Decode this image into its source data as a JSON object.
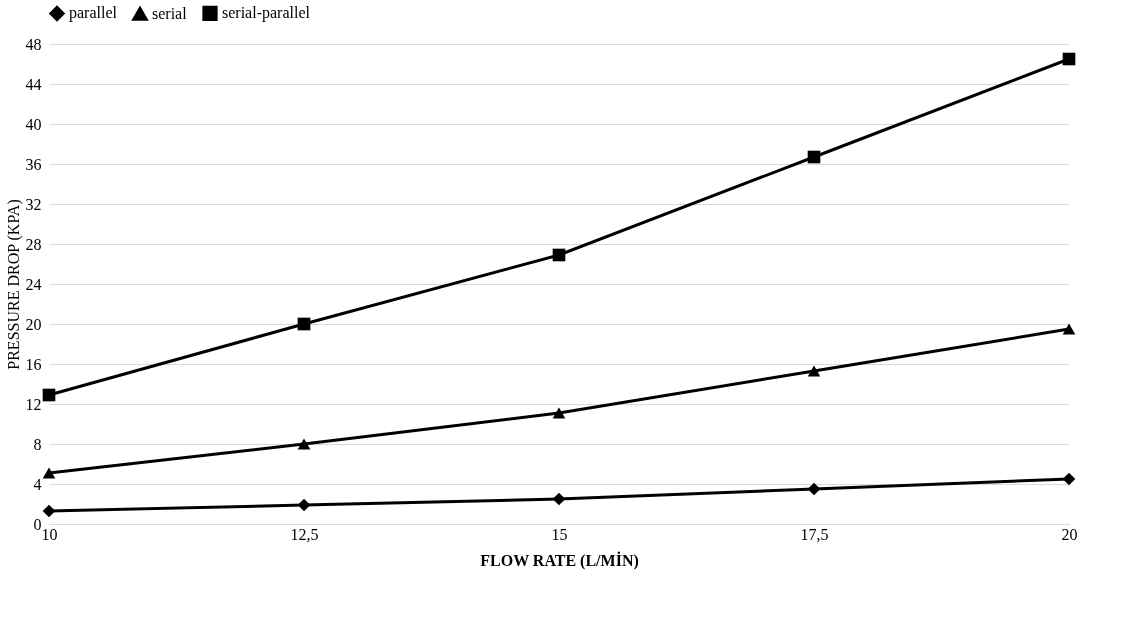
{
  "chart_data": {
    "type": "line",
    "xlabel": "FLOW RATE (L/MİN)",
    "ylabel": "PRESSURE DROP (KPA)",
    "categories": [
      "10",
      "12,5",
      "15",
      "17,5",
      "20"
    ],
    "series": [
      {
        "name": "parallel",
        "color": "#000000",
        "marker": "diamond",
        "values": [
          1.3,
          1.9,
          2.5,
          3.5,
          4.5
        ]
      },
      {
        "name": "serial",
        "color": "#000000",
        "marker": "triangle",
        "values": [
          5.1,
          8.0,
          11.1,
          15.3,
          19.5
        ]
      },
      {
        "name": "serial-parallel",
        "color": "#000000",
        "marker": "square",
        "values": [
          12.9,
          20.0,
          26.9,
          36.7,
          46.5
        ]
      }
    ],
    "ylim": [
      0,
      48
    ],
    "yticks": [
      0,
      4,
      8,
      12,
      16,
      20,
      24,
      28,
      32,
      36,
      40,
      44,
      48
    ],
    "grid": "y",
    "legend": "top",
    "line_style": "solid"
  }
}
